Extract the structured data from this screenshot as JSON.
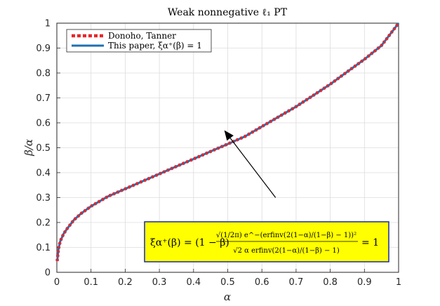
{
  "chart_data": {
    "type": "line",
    "title": "Weak nonnegative ℓ₁ PT",
    "xlabel": "α",
    "ylabel": "β/α",
    "xlim": [
      0,
      1
    ],
    "ylim": [
      0,
      1
    ],
    "xticks": [
      "0",
      "0.1",
      "0.2",
      "0.3",
      "0.4",
      "0.5",
      "0.6",
      "0.7",
      "0.8",
      "0.9",
      "1"
    ],
    "yticks": [
      "0",
      "0.1",
      "0.2",
      "0.3",
      "0.4",
      "0.5",
      "0.6",
      "0.7",
      "0.8",
      "0.9",
      "1"
    ],
    "grid": true,
    "legend_position": "top-left",
    "x": [
      0.001,
      0.005,
      0.01,
      0.02,
      0.03,
      0.05,
      0.07,
      0.1,
      0.15,
      0.2,
      0.25,
      0.3,
      0.35,
      0.4,
      0.45,
      0.5,
      0.55,
      0.6,
      0.65,
      0.7,
      0.75,
      0.8,
      0.85,
      0.9,
      0.95,
      1.0
    ],
    "series": [
      {
        "name": "Donoho, Tanner",
        "color": "#e8262b",
        "style": "dotted",
        "values": [
          0.045,
          0.095,
          0.125,
          0.155,
          0.175,
          0.21,
          0.235,
          0.265,
          0.305,
          0.335,
          0.365,
          0.395,
          0.425,
          0.455,
          0.485,
          0.515,
          0.545,
          0.585,
          0.625,
          0.665,
          0.71,
          0.755,
          0.805,
          0.855,
          0.91,
          1.0
        ]
      },
      {
        "name": "This paper, ξα⁺(β) = 1",
        "color": "#1f6fb3",
        "style": "solid",
        "values": [
          0.045,
          0.095,
          0.125,
          0.155,
          0.175,
          0.21,
          0.235,
          0.265,
          0.305,
          0.335,
          0.365,
          0.395,
          0.425,
          0.455,
          0.485,
          0.515,
          0.545,
          0.585,
          0.625,
          0.665,
          0.71,
          0.755,
          0.805,
          0.855,
          0.91,
          1.0
        ]
      }
    ],
    "annotation": {
      "equation_lhs": "ξα⁺(β) = (1 − β)",
      "numerator": "√(1/2π) e^−(erfinv(2(1−α)/(1−β) − 1))²",
      "denominator": "√2 α erfinv(2(1−α)/(1−β) − 1)",
      "equation_rhs": "= 1",
      "box_color": "#ffff00",
      "border_color": "#1a2aa6",
      "arrow_target": [
        0.49,
        0.57
      ],
      "arrow_tail": [
        0.64,
        0.3
      ]
    }
  }
}
